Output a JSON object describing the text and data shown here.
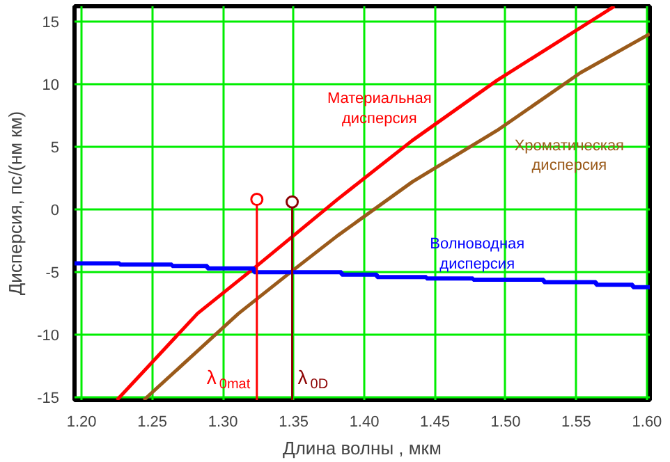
{
  "chart_data": {
    "type": "line",
    "xlabel": "Длина волны , мкм",
    "ylabel": "Дисперсия, пс/(нм км)",
    "xlim": [
      1.195,
      1.602
    ],
    "ylim": [
      -15.2,
      16.2
    ],
    "xticks": [
      {
        "value": 1.2,
        "label": "1.20"
      },
      {
        "value": 1.25,
        "label": "1.25"
      },
      {
        "value": 1.3,
        "label": "1.30"
      },
      {
        "value": 1.35,
        "label": "1.35"
      },
      {
        "value": 1.4,
        "label": "1.40"
      },
      {
        "value": 1.45,
        "label": "1.45"
      },
      {
        "value": 1.5,
        "label": "1.50"
      },
      {
        "value": 1.55,
        "label": "1.55"
      },
      {
        "value": 1.6,
        "label": "1.60"
      }
    ],
    "yticks": [
      -15,
      -10,
      -5,
      0,
      5,
      10,
      15
    ],
    "grid": true,
    "series": [
      {
        "name": "Материальная\nдисперсия",
        "color": "#ff0000",
        "x": [
          1.225,
          1.282,
          1.324,
          1.381,
          1.434,
          1.494,
          1.577
        ],
        "values": [
          -15.2,
          -8.3,
          -4.5,
          0.8,
          5.5,
          10.3,
          16.2
        ]
      },
      {
        "name": "Хроматическая\nдисперсия",
        "color": "#9a5a1a",
        "x": [
          1.244,
          1.311,
          1.349,
          1.381,
          1.434,
          1.494,
          1.553,
          1.602
        ],
        "values": [
          -15.2,
          -8.3,
          -4.9,
          -2.1,
          2.2,
          6.3,
          10.9,
          14.0
        ]
      },
      {
        "name": "Волноводная\nдисперсия",
        "type": "step",
        "color": "#0000ff",
        "x": [
          1.195,
          1.227,
          1.264,
          1.289,
          1.322,
          1.384,
          1.409,
          1.444,
          1.477,
          1.527,
          1.564,
          1.59,
          1.602
        ],
        "values": [
          -4.3,
          -4.4,
          -4.5,
          -4.7,
          -5.0,
          -5.2,
          -5.4,
          -5.5,
          -5.6,
          -5.8,
          -6.0,
          -6.2,
          -6.2
        ]
      },
      {
        "name": "λ$_{0mat}$",
        "type": "lollipop",
        "color": "#ff0000",
        "x": [
          1.324
        ],
        "values": [
          0.8
        ]
      },
      {
        "name": "λ$_{0D}$",
        "type": "lollipop",
        "color": "#8b0000",
        "x": [
          1.349
        ],
        "values": [
          0.6
        ]
      }
    ]
  }
}
